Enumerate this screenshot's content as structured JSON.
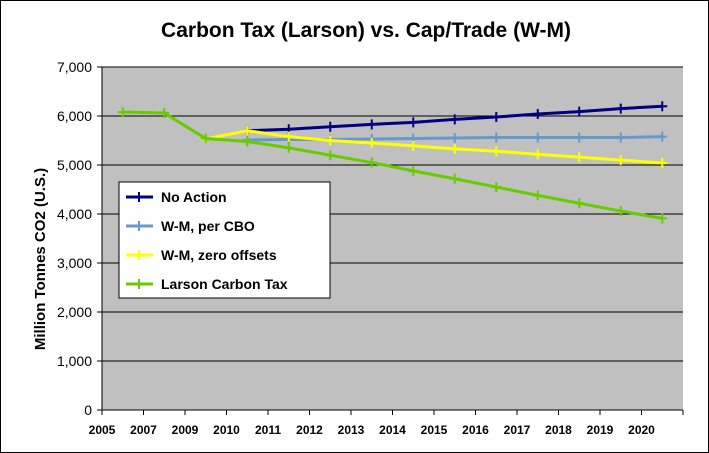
{
  "chart_data": {
    "type": "line",
    "title": "Carbon Tax (Larson) vs. Cap/Trade (W-M)",
    "xlabel": "",
    "ylabel": "Million Tonnes CO2 (U.S.)",
    "ylim": [
      0,
      7000
    ],
    "yticks": [
      "0",
      "1,000",
      "2,000",
      "3,000",
      "4,000",
      "5,000",
      "6,000",
      "7,000"
    ],
    "categories": [
      "2005",
      "2007",
      "2009",
      "2010",
      "2011",
      "2012",
      "2013",
      "2014",
      "2015",
      "2016",
      "2017",
      "2018",
      "2019",
      "2020"
    ],
    "grid": "horizontal",
    "legend_placement": "left-center",
    "series": [
      {
        "name": "No Action",
        "color": "#000080",
        "values": [
          null,
          null,
          null,
          5700,
          5730,
          5780,
          5830,
          5870,
          5930,
          5980,
          6040,
          6090,
          6150,
          6200
        ]
      },
      {
        "name": "W-M, per CBO",
        "color": "#6699CC",
        "values": [
          null,
          null,
          null,
          5510,
          5520,
          5520,
          5530,
          5540,
          5550,
          5560,
          5560,
          5560,
          5560,
          5580
        ]
      },
      {
        "name": "W-M, zero offsets",
        "color": "#FFFF00",
        "values": [
          null,
          null,
          5530,
          5700,
          5580,
          5500,
          5450,
          5390,
          5330,
          5280,
          5220,
          5160,
          5100,
          5040
        ]
      },
      {
        "name": "Larson Carbon Tax",
        "color": "#66CC00",
        "values": [
          6080,
          6060,
          5540,
          5480,
          5350,
          5200,
          5050,
          4880,
          4720,
          4550,
          4380,
          4220,
          4060,
          3910
        ]
      }
    ]
  }
}
